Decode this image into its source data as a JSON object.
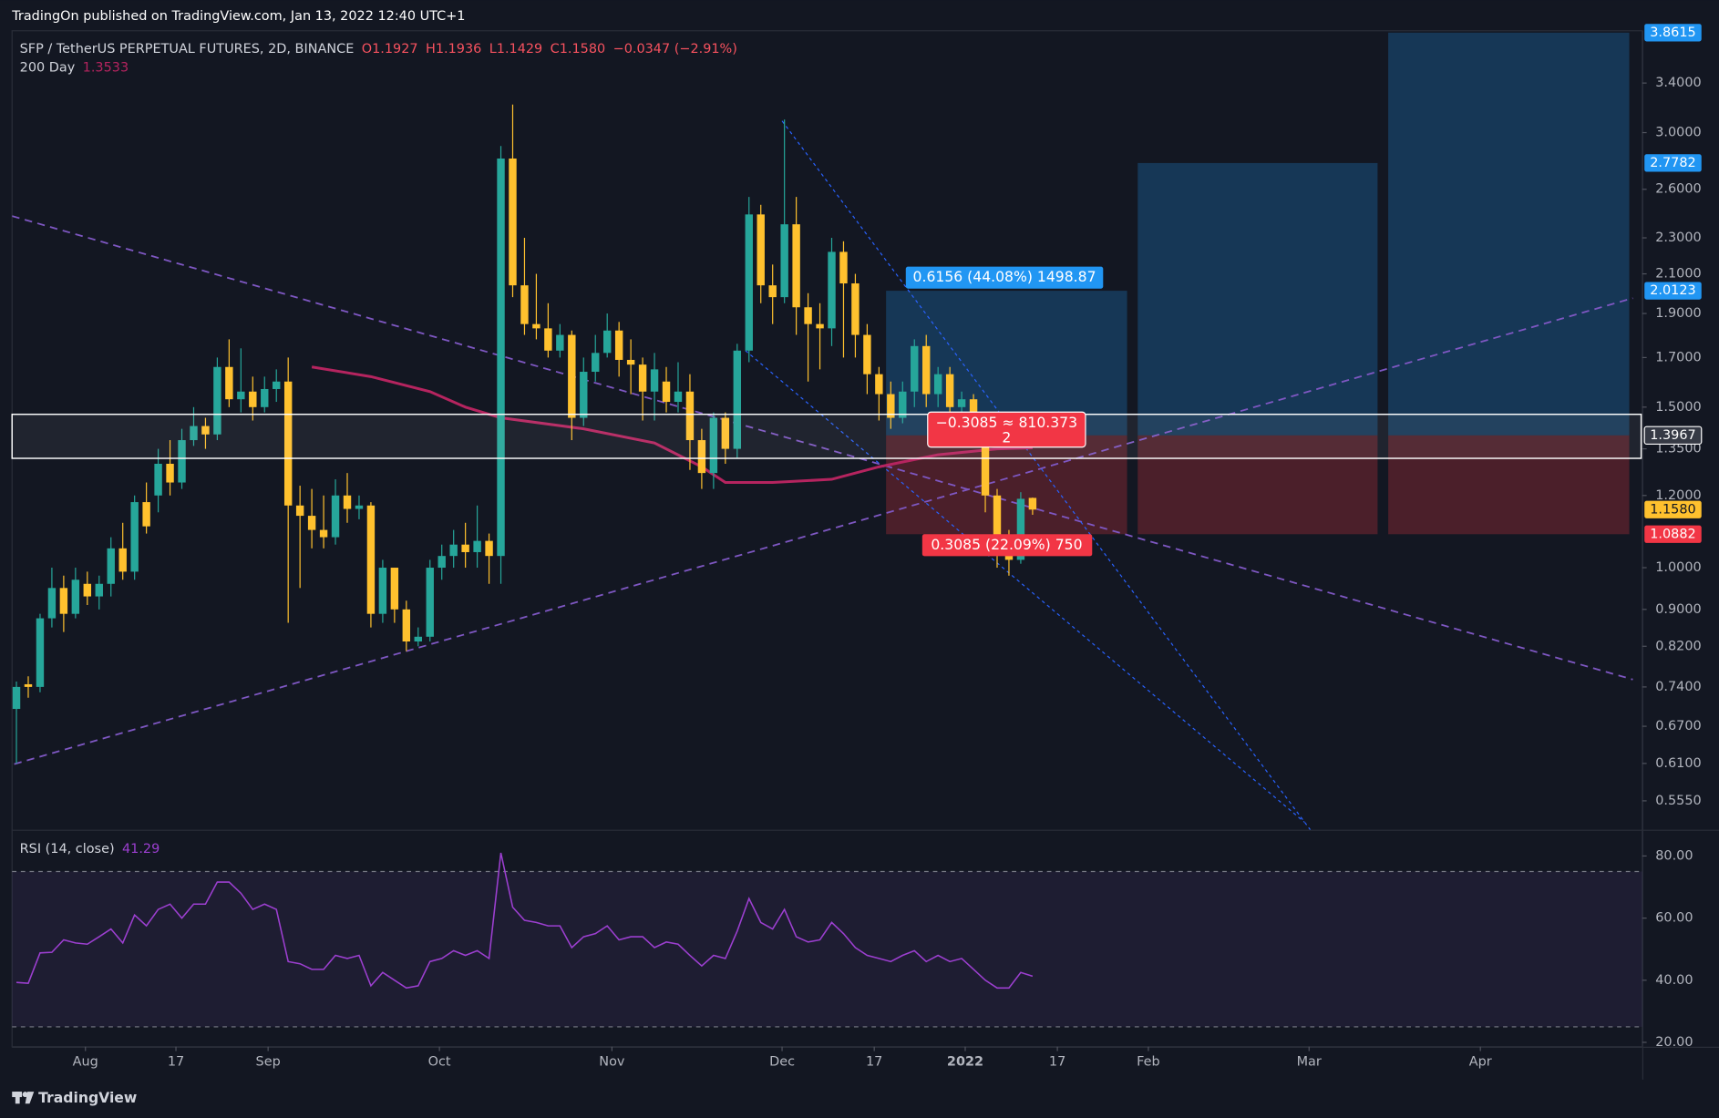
{
  "chart_data": {
    "type": "candlestick",
    "header": "TradingOn published on TradingView.com, Jan 13, 2022 12:40 UTC+1",
    "title": "SFP / TetherUS PERPETUAL FUTURES, 2D, BINANCE",
    "legend_ohlc": [
      "O1.1927",
      "H1.1936",
      "L1.1429",
      "C1.1580"
    ],
    "change": "−0.0347 (−2.91%)",
    "footer": "TradingView",
    "log_scale": true,
    "up_color": "#26a69a",
    "down_color": "#ffc12e",
    "xlim": [
      -0.37,
      137.6
    ],
    "xticks": [
      {
        "value": 5.84,
        "label": "Aug"
      },
      {
        "value": 13.5,
        "label": "17"
      },
      {
        "value": 21.3,
        "label": "Sep"
      },
      {
        "value": 35.8,
        "label": "Oct"
      },
      {
        "value": 50.4,
        "label": "Nov"
      },
      {
        "value": 64.8,
        "label": "Dec"
      },
      {
        "value": 72.6,
        "label": "17"
      },
      {
        "value": 80.3,
        "label": "2022"
      },
      {
        "value": 88.1,
        "label": "17"
      },
      {
        "value": 95.8,
        "label": "Feb"
      },
      {
        "value": 109.4,
        "label": "Mar"
      },
      {
        "value": 123.9,
        "label": "Apr"
      }
    ],
    "ylim": [
      0.516,
      3.88
    ],
    "yticks": [
      {
        "value": 3.4,
        "label": "3.4000"
      },
      {
        "value": 3.0,
        "label": "3.0000"
      },
      {
        "value": 2.6,
        "label": "2.6000"
      },
      {
        "value": 2.3,
        "label": "2.3000"
      },
      {
        "value": 2.1,
        "label": "2.1000"
      },
      {
        "value": 1.9,
        "label": "1.9000"
      },
      {
        "value": 1.7,
        "label": "1.7000"
      },
      {
        "value": 1.5,
        "label": "1.5000"
      },
      {
        "value": 1.35,
        "label": "1.3500"
      },
      {
        "value": 1.2,
        "label": "1.2000"
      },
      {
        "value": 1.0,
        "label": "1.0000"
      },
      {
        "value": 0.9,
        "label": "0.9000"
      },
      {
        "value": 0.82,
        "label": "0.8200"
      },
      {
        "value": 0.74,
        "label": "0.7400"
      },
      {
        "value": 0.67,
        "label": "0.6700"
      },
      {
        "value": 0.61,
        "label": "0.6100"
      },
      {
        "value": 0.555,
        "label": "0.5550"
      }
    ],
    "open": [
      0.7,
      0.745,
      0.74,
      0.88,
      0.95,
      0.89,
      0.96,
      0.93,
      0.96,
      1.05,
      0.99,
      1.18,
      1.2,
      1.3,
      1.24,
      1.38,
      1.43,
      1.4,
      1.66,
      1.53,
      1.56,
      1.5,
      1.57,
      1.6,
      1.17,
      1.14,
      1.1,
      1.08,
      1.2,
      1.16,
      1.17,
      0.89,
      1.0,
      0.9,
      0.83,
      0.84,
      1.0,
      1.03,
      1.06,
      1.04,
      1.07,
      1.03,
      2.81,
      2.04,
      1.85,
      1.83,
      1.73,
      1.8,
      1.46,
      1.64,
      1.72,
      1.82,
      1.69,
      1.67,
      1.56,
      1.6,
      1.52,
      1.56,
      1.38,
      1.27,
      1.46,
      1.35,
      1.73,
      2.44,
      2.04,
      1.98,
      2.38,
      1.93,
      1.85,
      1.83,
      2.22,
      2.05,
      1.8,
      1.63,
      1.55,
      1.46,
      1.56,
      1.75,
      1.55,
      1.63,
      1.5,
      1.53,
      1.43,
      1.2,
      1.07,
      1.02,
      1.1927
    ],
    "high": [
      0.75,
      0.76,
      0.89,
      1.0,
      0.98,
      1.0,
      0.99,
      0.98,
      1.08,
      1.12,
      1.2,
      1.24,
      1.35,
      1.38,
      1.42,
      1.5,
      1.46,
      1.7,
      1.78,
      1.74,
      1.62,
      1.62,
      1.65,
      1.7,
      1.23,
      1.22,
      1.2,
      1.25,
      1.27,
      1.2,
      1.18,
      1.02,
      1.0,
      0.92,
      0.86,
      1.02,
      1.06,
      1.1,
      1.12,
      1.17,
      1.09,
      2.9,
      3.22,
      2.3,
      2.1,
      1.95,
      1.85,
      1.82,
      1.7,
      1.8,
      1.9,
      1.86,
      1.78,
      1.7,
      1.72,
      1.66,
      1.68,
      1.63,
      1.42,
      1.48,
      1.48,
      1.76,
      2.55,
      2.5,
      2.15,
      3.1,
      2.55,
      2.0,
      1.95,
      2.3,
      2.28,
      2.1,
      1.85,
      1.66,
      1.6,
      1.6,
      1.78,
      1.8,
      1.66,
      1.66,
      1.56,
      1.55,
      1.44,
      1.22,
      1.1,
      1.21,
      1.1936
    ],
    "low": [
      0.61,
      0.72,
      0.73,
      0.86,
      0.85,
      0.88,
      0.91,
      0.9,
      0.93,
      0.97,
      0.97,
      1.09,
      1.15,
      1.2,
      1.22,
      1.36,
      1.35,
      1.38,
      1.5,
      1.48,
      1.45,
      1.48,
      1.52,
      0.87,
      0.95,
      1.05,
      1.05,
      1.06,
      1.12,
      1.13,
      0.86,
      0.87,
      0.87,
      0.81,
      0.82,
      0.83,
      0.97,
      1.0,
      1.0,
      1.0,
      0.96,
      0.96,
      1.98,
      1.8,
      1.78,
      1.7,
      1.7,
      1.38,
      1.43,
      1.6,
      1.7,
      1.62,
      1.55,
      1.45,
      1.45,
      1.48,
      1.48,
      1.28,
      1.22,
      1.22,
      1.3,
      1.32,
      1.68,
      1.95,
      1.85,
      1.95,
      1.8,
      1.6,
      1.65,
      1.75,
      1.7,
      1.7,
      1.55,
      1.45,
      1.42,
      1.44,
      1.5,
      1.5,
      1.5,
      1.47,
      1.48,
      1.38,
      1.15,
      1.0,
      0.98,
      1.01,
      1.1429
    ],
    "close": [
      0.74,
      0.74,
      0.88,
      0.95,
      0.89,
      0.97,
      0.93,
      0.96,
      1.05,
      0.99,
      1.18,
      1.11,
      1.3,
      1.24,
      1.38,
      1.43,
      1.4,
      1.66,
      1.53,
      1.56,
      1.5,
      1.57,
      1.6,
      1.17,
      1.14,
      1.1,
      1.08,
      1.2,
      1.16,
      1.17,
      0.89,
      1.0,
      0.9,
      0.83,
      0.84,
      1.0,
      1.03,
      1.06,
      1.04,
      1.07,
      1.03,
      2.81,
      2.04,
      1.85,
      1.83,
      1.73,
      1.8,
      1.46,
      1.64,
      1.72,
      1.82,
      1.69,
      1.67,
      1.56,
      1.65,
      1.52,
      1.56,
      1.38,
      1.27,
      1.46,
      1.35,
      1.73,
      2.44,
      2.04,
      1.98,
      2.38,
      1.93,
      1.85,
      1.83,
      2.22,
      2.05,
      1.8,
      1.63,
      1.55,
      1.46,
      1.56,
      1.75,
      1.55,
      1.63,
      1.5,
      1.53,
      1.43,
      1.2,
      1.07,
      1.02,
      1.19,
      1.158
    ],
    "ma": {
      "name": "200 Day",
      "value_label": "1.3533",
      "color": "#b5245f",
      "x": [
        25,
        30,
        35,
        38,
        41,
        48,
        54,
        58,
        60,
        64,
        69,
        73,
        78,
        83,
        86
      ],
      "values": [
        1.66,
        1.62,
        1.56,
        1.5,
        1.46,
        1.42,
        1.37,
        1.29,
        1.24,
        1.24,
        1.25,
        1.29,
        1.33,
        1.35,
        1.3533
      ]
    },
    "zone": {
      "values": [
        1.318,
        1.473
      ],
      "color": "#ffffff"
    },
    "price_labels": [
      {
        "value": 3.8615,
        "label": "3.8615",
        "color": "#2196f3"
      },
      {
        "value": 2.7782,
        "label": "2.7782",
        "color": "#2196f3"
      },
      {
        "value": 2.0123,
        "label": "2.0123",
        "color": "#2196f3"
      },
      {
        "value": 1.3967,
        "label": "1.3967",
        "color": "#363a45"
      },
      {
        "value": 1.158,
        "label": "1.1580",
        "color": "#ffc12e"
      },
      {
        "value": 1.0882,
        "label": "1.0882",
        "color": "#f23645"
      }
    ],
    "positions": [
      {
        "x": [
          73.6,
          94.0
        ],
        "target": 2.0123,
        "entry": 1.3967,
        "stop": 1.0882,
        "target_label": "0.6156 (44.08%) 1498.87",
        "stop_label": "0.3085 (22.09%) 750"
      },
      {
        "x": [
          94.9,
          115.2
        ],
        "target": 2.7782,
        "entry": 1.3967,
        "stop": 1.0882
      },
      {
        "x": [
          116.1,
          136.5
        ],
        "target": 3.8615,
        "entry": 1.3967,
        "stop": 1.0882
      }
    ],
    "pnl_label": {
      "text": "−0.3085 ≈ 810.373",
      "sub": "2",
      "x": 83.8,
      "value": 1.425
    },
    "trendlines": [
      {
        "x": [
          -0.37,
          136.8
        ],
        "values": [
          2.43,
          0.754
        ],
        "color": "#7e57c2",
        "style": "dashed"
      },
      {
        "x": [
          -0.19,
          136.8
        ],
        "values": [
          0.609,
          1.975
        ],
        "color": "#7e57c2",
        "style": "dashed"
      },
      {
        "x": [
          64.8,
          109.5
        ],
        "values": [
          3.09,
          0.516
        ],
        "color": "#2962ff",
        "style": "dotted"
      },
      {
        "x": [
          61.7,
          109.0
        ],
        "values": [
          1.73,
          0.526
        ],
        "color": "#2962ff",
        "style": "dotted"
      }
    ],
    "rsi": {
      "title": "RSI (14, close)",
      "value_label": "41.29",
      "color": "#9c3fd0",
      "ylim": [
        18.6,
        87.4
      ],
      "yticks": [
        {
          "value": 80,
          "label": "80.00"
        },
        {
          "value": 60,
          "label": "60.00"
        },
        {
          "value": 40,
          "label": "40.00"
        },
        {
          "value": 20,
          "label": "20.00"
        }
      ],
      "bands": [
        75,
        25
      ],
      "values": [
        39.3,
        39,
        48.8,
        49,
        53,
        52,
        51.6,
        54,
        56.5,
        52,
        61,
        57.5,
        62.8,
        64.5,
        60,
        64.5,
        64.5,
        71.6,
        71.6,
        68,
        62.8,
        64.5,
        62.8,
        46,
        45.3,
        43.5,
        43.5,
        48,
        47,
        48,
        38.2,
        42.5,
        40,
        37.5,
        38.2,
        46,
        47,
        49.5,
        48,
        49.5,
        47,
        81,
        63.5,
        59.3,
        58.6,
        57.5,
        57.5,
        50.5,
        54,
        55,
        57.5,
        53,
        54,
        54,
        50.5,
        52.3,
        51.6,
        48,
        44.6,
        48,
        47,
        55.8,
        66.3,
        58.6,
        56.5,
        62.8,
        54,
        52.3,
        53,
        58.6,
        55,
        50.5,
        48,
        47,
        46,
        48,
        49.5,
        46,
        48,
        46,
        47,
        43.5,
        40,
        37.5,
        37.5,
        42.5,
        41.29
      ]
    }
  }
}
